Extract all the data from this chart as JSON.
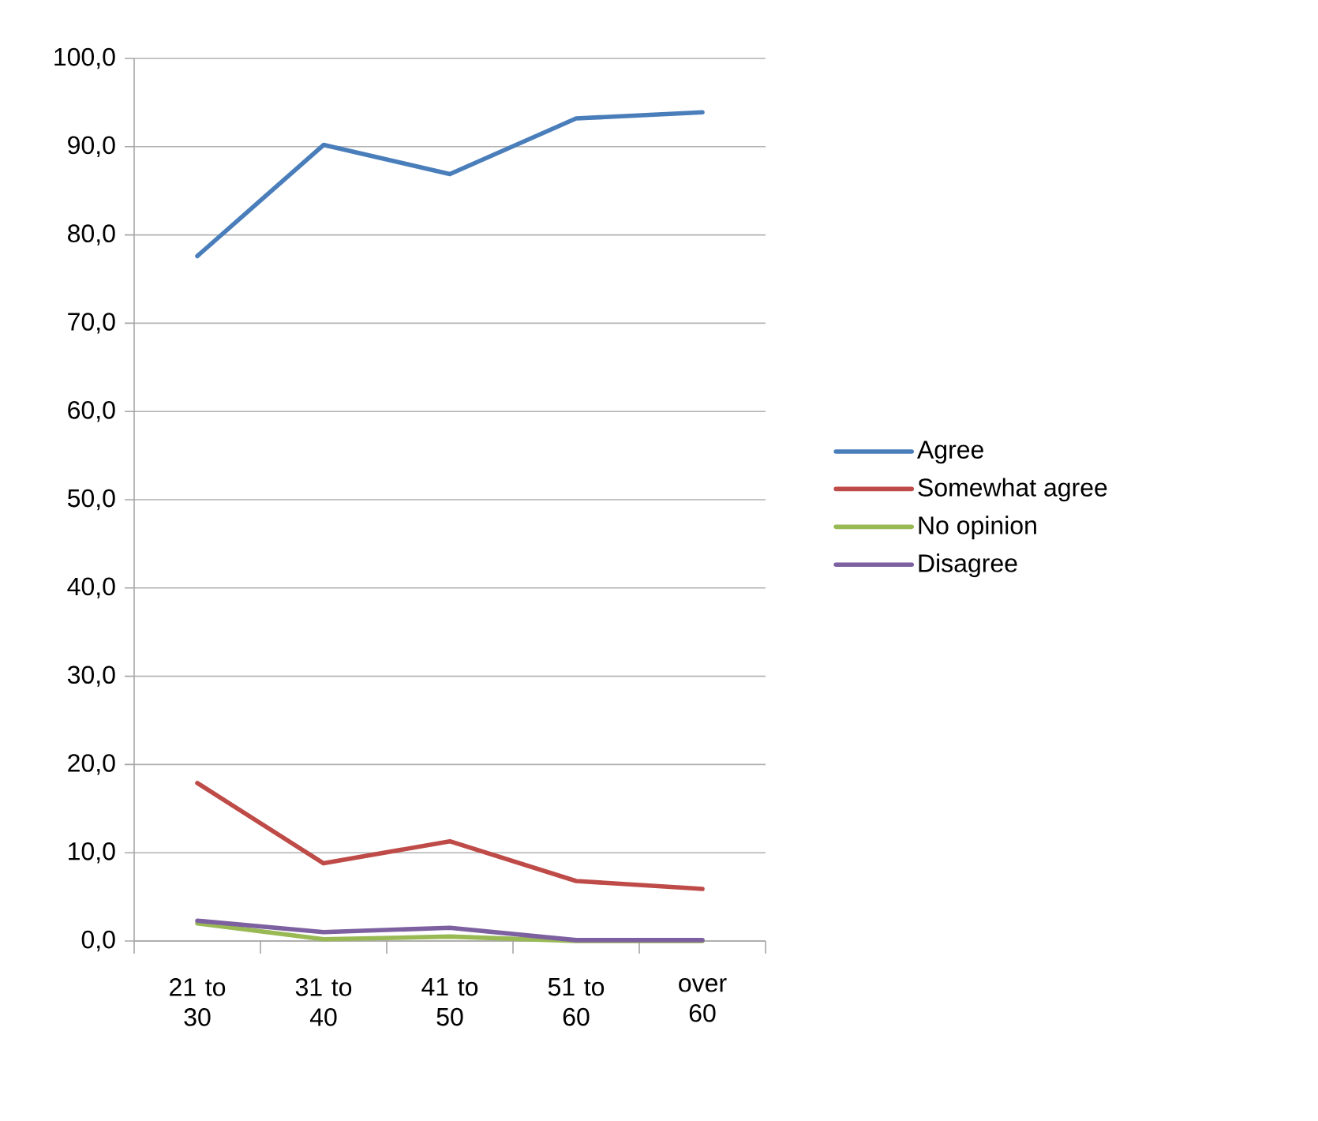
{
  "chart_data": {
    "type": "line",
    "categories": [
      "21 to 30",
      "31 to 40",
      "41 to 50",
      "51 to 60",
      "over 60"
    ],
    "series": [
      {
        "name": "Agree",
        "color": "#4a7ebb",
        "values": [
          77.6,
          90.2,
          86.9,
          93.2,
          93.9
        ]
      },
      {
        "name": "Somewhat agree",
        "color": "#be4b48",
        "values": [
          17.9,
          8.8,
          11.3,
          6.8,
          5.9
        ]
      },
      {
        "name": "No opinion",
        "color": "#98b954",
        "values": [
          2.0,
          0.2,
          0.5,
          0.0,
          0.0
        ]
      },
      {
        "name": "Disagree",
        "color": "#7d60a0",
        "values": [
          2.3,
          1.0,
          1.5,
          0.1,
          0.1
        ]
      }
    ],
    "ylim": [
      0,
      100
    ],
    "yticks": [
      {
        "value": 0,
        "label": "0,0"
      },
      {
        "value": 10,
        "label": "10,0"
      },
      {
        "value": 20,
        "label": "20,0"
      },
      {
        "value": 30,
        "label": "30,0"
      },
      {
        "value": 40,
        "label": "40,0"
      },
      {
        "value": 50,
        "label": "50,0"
      },
      {
        "value": 60,
        "label": "60,0"
      },
      {
        "value": 70,
        "label": "70,0"
      },
      {
        "value": 80,
        "label": "80,0"
      },
      {
        "value": 90,
        "label": "90,0"
      },
      {
        "value": 100,
        "label": "100,0"
      }
    ],
    "grid": "y",
    "legend": "right",
    "marker": "none",
    "line_style": "solid"
  }
}
